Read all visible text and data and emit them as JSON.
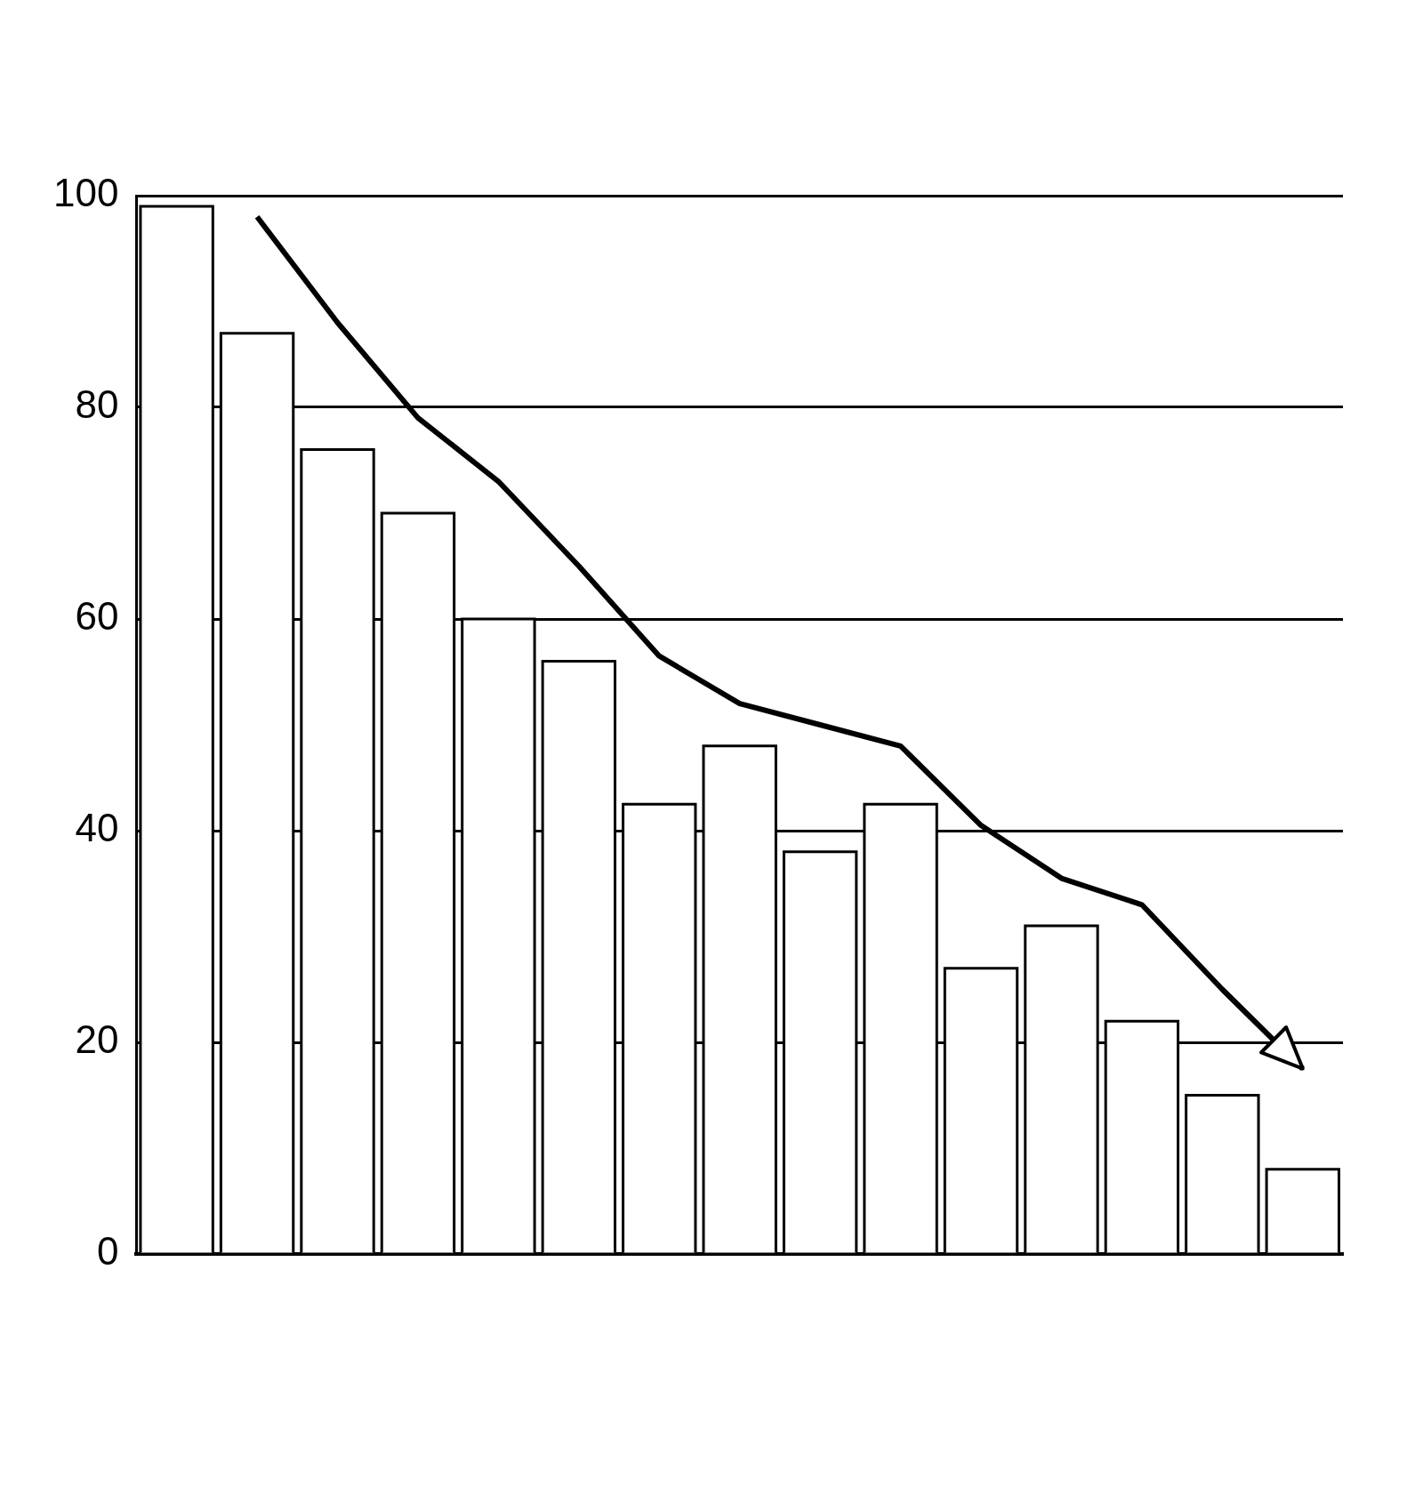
{
  "chart_data": {
    "type": "bar",
    "categories": [
      null,
      null,
      null,
      null,
      null,
      null,
      null,
      null,
      null,
      null,
      null,
      null,
      null,
      null,
      null
    ],
    "series": [
      {
        "type": "line",
        "color": "#000000",
        "values": [
          null,
          98,
          88,
          79,
          73,
          65,
          56.5,
          52,
          50,
          48,
          40.5,
          35.5,
          33,
          25,
          17.5
        ]
      },
      {
        "color": "#ffffff",
        "values": [
          99,
          87,
          76,
          70,
          60,
          56,
          42.5,
          48,
          38,
          42.5,
          27,
          31,
          22,
          15,
          8
        ]
      }
    ],
    "ylim": [
      0,
      100
    ],
    "yticks": [
      0,
      20,
      40,
      60,
      80,
      100
    ],
    "grid": "y",
    "tick_labels": "y",
    "legend": false
  }
}
